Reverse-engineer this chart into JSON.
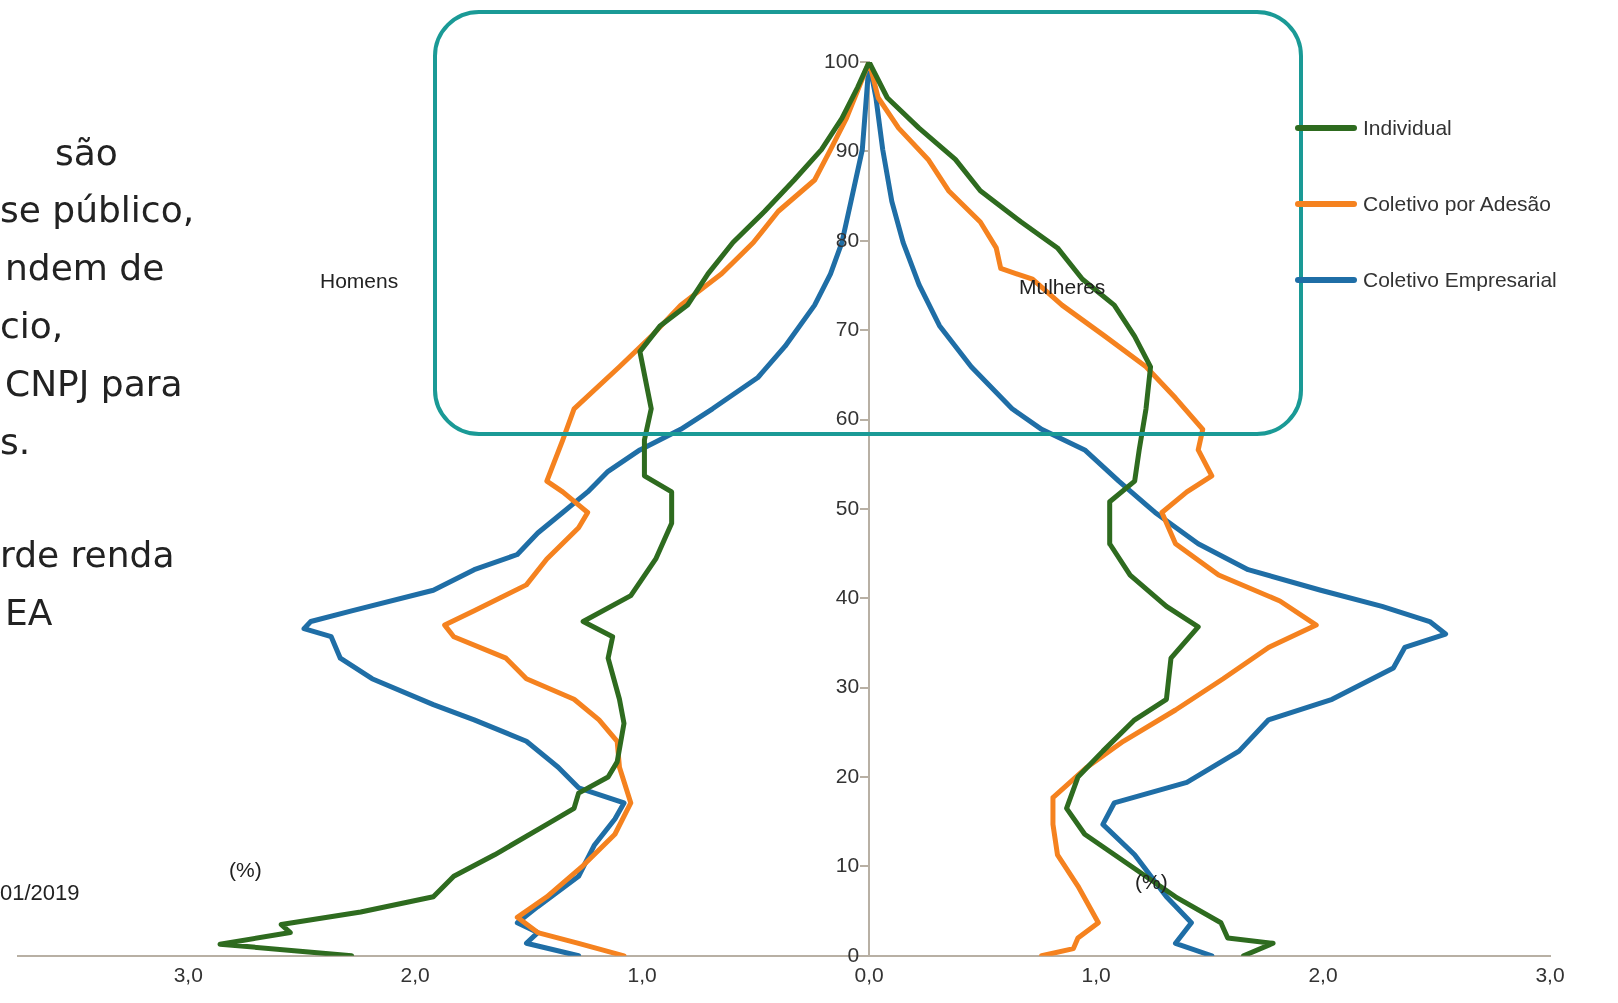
{
  "chart_data": {
    "type": "line",
    "marker": "none",
    "line_style": "solid",
    "legend": "top right",
    "annotations": [
      "são",
      "se público,",
      "ndem de",
      "cio,",
      "CNPJ para",
      "s.",
      "rde renda",
      "EA",
      "01/2019",
      "Homens",
      "Mulheres",
      "(%)",
      "(%)"
    ],
    "xlim": [
      -3.75,
      3
    ],
    "xticks": [
      {
        "value": -3,
        "label": "3,0"
      },
      {
        "value": -2,
        "label": "2,0"
      },
      {
        "value": -1,
        "label": "1,0"
      },
      {
        "value": 0,
        "label": "0,0"
      },
      {
        "value": 1,
        "label": "1,0"
      },
      {
        "value": 2,
        "label": "2,0"
      },
      {
        "value": 3,
        "label": "3,0"
      }
    ],
    "ylim": [
      0,
      100
    ],
    "yticks": [
      0,
      10,
      20,
      30,
      40,
      50,
      60,
      70,
      80,
      90,
      100
    ],
    "series": [
      {
        "name": "Individual",
        "color": "#2e6b1f",
        "x": [
          -2.28,
          -2.86,
          -2.55,
          -2.59,
          -2.24,
          -1.92,
          -1.83,
          -1.65,
          -1.42,
          -1.3,
          -1.28,
          -1.15,
          -1.11,
          -1.08,
          -1.1,
          -1.15,
          -1.13,
          -1.26,
          -1.05,
          -0.94,
          -0.87,
          -0.87,
          -0.99,
          -0.99,
          -0.96,
          -1.01,
          -0.92,
          -0.8,
          -0.71,
          -0.6,
          -0.46,
          -0.33,
          -0.21,
          -0.12,
          -0.05,
          0,
          0.08,
          0.22,
          0.38,
          0.49,
          0.67,
          0.83,
          0.94,
          1.08,
          1.17,
          1.24,
          1.22,
          1.19,
          1.17,
          1.06,
          1.06,
          1.15,
          1.31,
          1.45,
          1.33,
          1.31,
          1.17,
          1.03,
          0.92,
          0.87,
          0.95,
          1.15,
          1.35,
          1.55,
          1.58,
          1.78,
          1.65
        ],
        "values": [
          0,
          1.3,
          2.6,
          3.5,
          4.9,
          6.6,
          8.9,
          11.3,
          14.7,
          16.5,
          18.2,
          20,
          21.7,
          26,
          28.7,
          33.3,
          35.7,
          37.4,
          40.3,
          44.4,
          48.4,
          51.9,
          53.7,
          57.7,
          61.2,
          67.6,
          70.5,
          72.8,
          76.3,
          79.8,
          83.3,
          86.8,
          90.2,
          93.7,
          97.2,
          100,
          96,
          92.6,
          89.1,
          85.6,
          82.1,
          79.2,
          75.7,
          72.8,
          69.3,
          65.9,
          61.2,
          56.6,
          53.1,
          50.8,
          46.1,
          42.6,
          39.1,
          36.8,
          33.3,
          28.7,
          26.4,
          22.9,
          20,
          16.5,
          13.6,
          10.1,
          6.6,
          3.7,
          2,
          1.4,
          0
        ]
      },
      {
        "name": "Coletivo por Adesão",
        "color": "#f5821f",
        "x": [
          -1.08,
          -1.28,
          -1.46,
          -1.55,
          -1.42,
          -1.26,
          -1.12,
          -1.05,
          -1.1,
          -1.11,
          -1.19,
          -1.3,
          -1.51,
          -1.6,
          -1.83,
          -1.87,
          -1.74,
          -1.51,
          -1.42,
          -1.28,
          -1.24,
          -1.35,
          -1.42,
          -1.35,
          -1.3,
          -1.1,
          -0.96,
          -0.83,
          -0.65,
          -0.51,
          -0.4,
          -0.24,
          -0.17,
          -0.1,
          0,
          0.04,
          0.13,
          0.26,
          0.35,
          0.49,
          0.56,
          0.58,
          0.72,
          0.85,
          1.04,
          1.22,
          1.35,
          1.47,
          1.45,
          1.51,
          1.4,
          1.29,
          1.35,
          1.54,
          1.81,
          1.97,
          1.76,
          1.56,
          1.35,
          1.12,
          0.96,
          0.81,
          0.81,
          0.83,
          0.92,
          1.01,
          0.92,
          0.9,
          0.76
        ],
        "values": [
          0,
          1.4,
          2.6,
          4.3,
          6.6,
          10.1,
          13.6,
          17.1,
          21.1,
          24,
          26.4,
          28.7,
          31,
          33.3,
          35.7,
          37,
          38.6,
          41.5,
          44.4,
          47.9,
          49.6,
          51.9,
          53.1,
          57.7,
          61.2,
          65.9,
          69.3,
          72.8,
          76.3,
          79.8,
          83.3,
          86.8,
          90.2,
          93.7,
          100,
          96,
          92.6,
          89.1,
          85.6,
          82.1,
          79.2,
          76.9,
          75.7,
          72.8,
          69.3,
          65.9,
          62.4,
          58.9,
          56.6,
          53.7,
          51.9,
          49.6,
          46.1,
          42.6,
          39.7,
          37,
          34.5,
          31,
          27.5,
          24,
          21.1,
          17.7,
          14.7,
          11.3,
          7.8,
          3.7,
          2,
          0.8,
          0
        ]
      },
      {
        "name": "Coletivo Empresarial",
        "color": "#1f6ea6",
        "x": [
          -1.28,
          -1.51,
          -1.46,
          -1.55,
          -1.46,
          -1.28,
          -1.21,
          -1.12,
          -1.08,
          -1.28,
          -1.37,
          -1.51,
          -1.74,
          -1.92,
          -2.19,
          -2.33,
          -2.37,
          -2.49,
          -2.46,
          -2.28,
          -1.92,
          -1.74,
          -1.55,
          -1.46,
          -1.35,
          -1.24,
          -1.15,
          -1.01,
          -0.83,
          -0.69,
          -0.49,
          -0.37,
          -0.24,
          -0.17,
          -0.12,
          -0.08,
          -0.03,
          0,
          0.03,
          0.06,
          0.1,
          0.15,
          0.22,
          0.31,
          0.45,
          0.63,
          0.76,
          0.95,
          1.1,
          1.26,
          1.45,
          1.67,
          1.99,
          2.26,
          2.47,
          2.54,
          2.36,
          2.31,
          2.04,
          1.76,
          1.63,
          1.4,
          1.08,
          1.03,
          1.17,
          1.31,
          1.42,
          1.35,
          1.51
        ],
        "values": [
          0,
          1.4,
          2.6,
          3.7,
          5.5,
          8.9,
          12.4,
          15.3,
          17.1,
          18.8,
          21.1,
          24,
          26.4,
          28.1,
          31,
          33.3,
          35.7,
          36.6,
          37.4,
          38.6,
          40.9,
          43.2,
          44.9,
          47.3,
          49.6,
          51.9,
          54.2,
          56.6,
          58.9,
          61.2,
          64.7,
          68.2,
          72.8,
          76.3,
          79.8,
          84.4,
          90.2,
          100,
          96,
          90.2,
          84.4,
          79.8,
          75.1,
          70.5,
          65.9,
          61.2,
          58.9,
          56.6,
          53.1,
          49.6,
          46.1,
          43.2,
          40.9,
          39.1,
          37.4,
          36,
          34.5,
          32.2,
          28.7,
          26.4,
          22.9,
          19.4,
          17.1,
          14.7,
          11.3,
          6.6,
          3.7,
          1.4,
          0
        ]
      }
    ]
  }
}
